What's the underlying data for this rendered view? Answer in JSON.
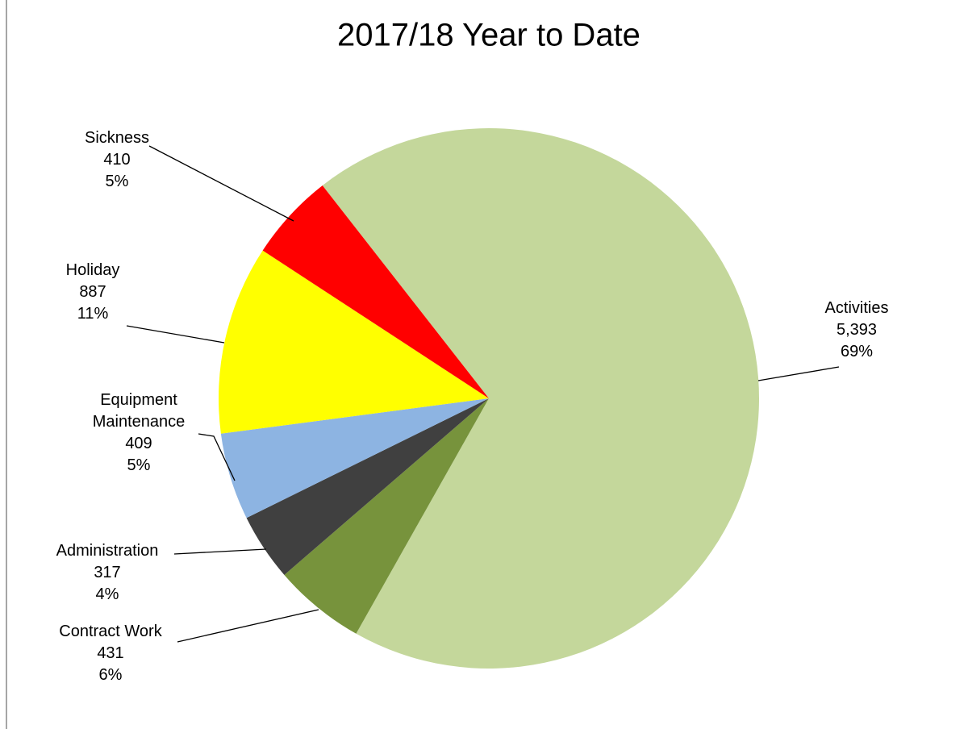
{
  "chart_data": {
    "type": "pie",
    "title": "2017/18 Year to Date",
    "categories": [
      "Activities",
      "Contract Work",
      "Administration",
      "Equipment Maintenance",
      "Holiday",
      "Sickness"
    ],
    "values": [
      5393,
      431,
      317,
      409,
      887,
      410
    ],
    "value_labels": [
      "5,393",
      "431",
      "317",
      "409",
      "887",
      "410"
    ],
    "percent_labels": [
      "69%",
      "6%",
      "4%",
      "5%",
      "11%",
      "5%"
    ],
    "colors": [
      "#c4d79b",
      "#77933c",
      "#404040",
      "#8db4e2",
      "#ffff00",
      "#ff0000"
    ],
    "start_angle": 322
  }
}
